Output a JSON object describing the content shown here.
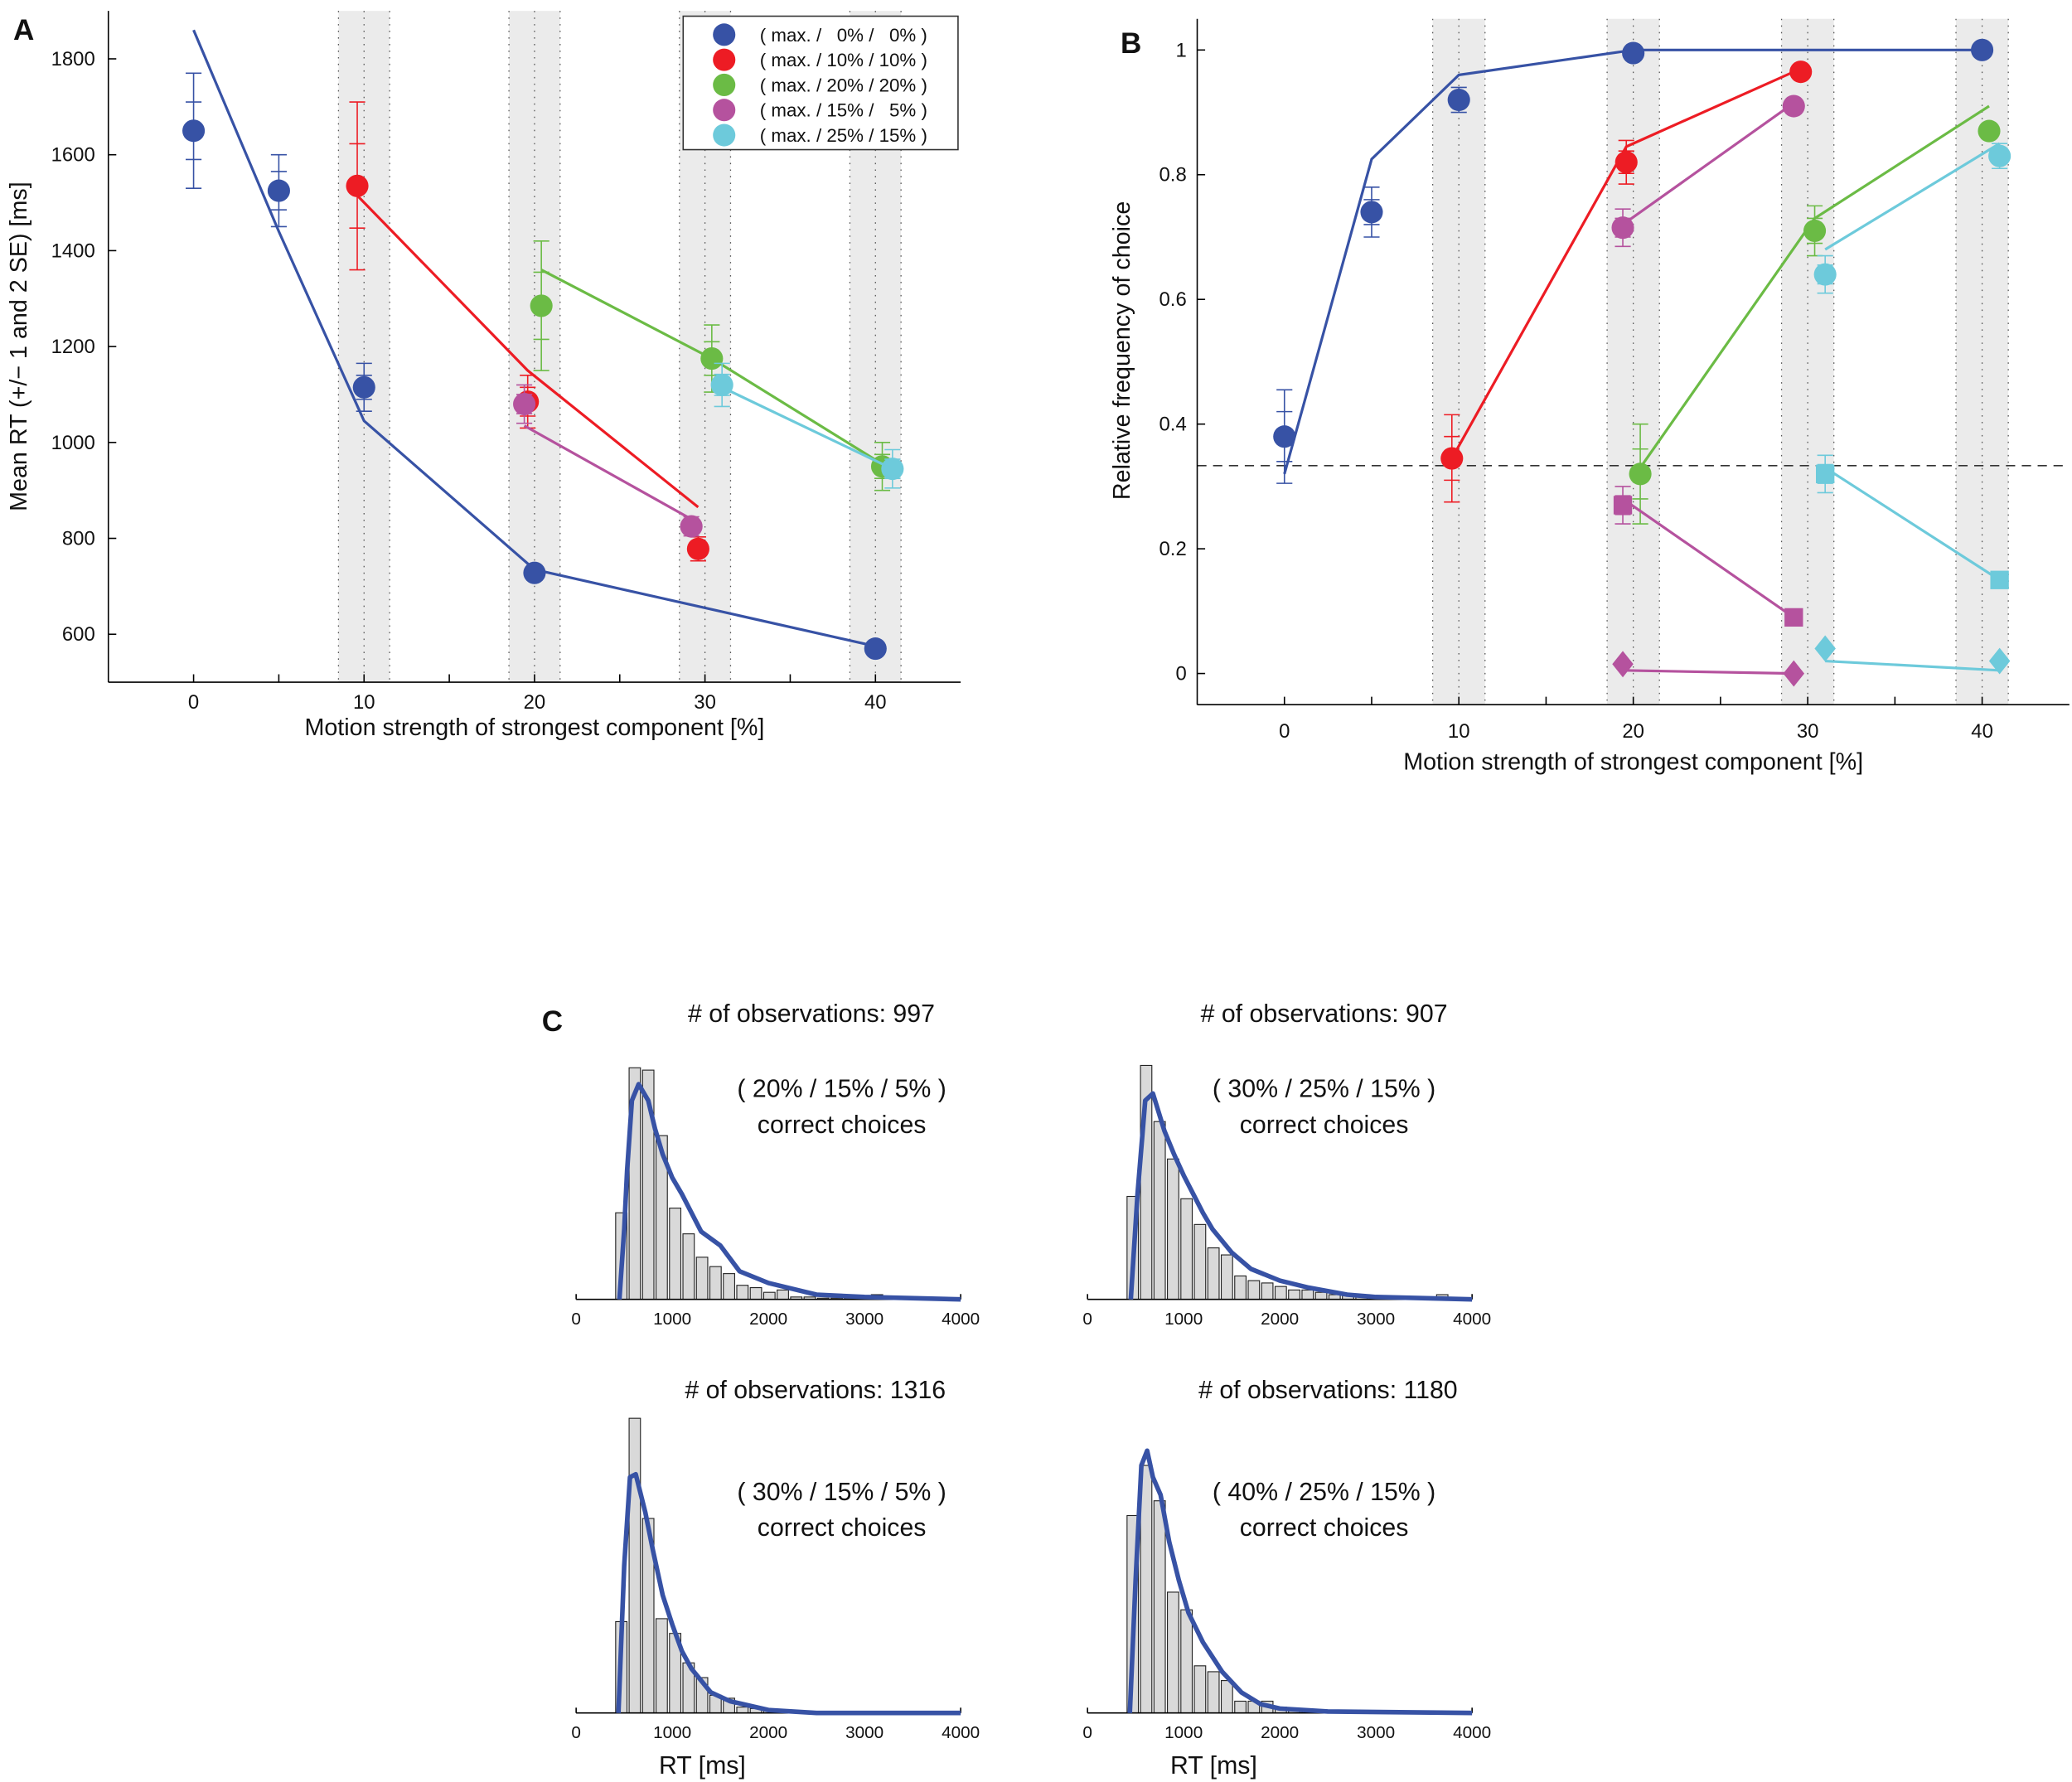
{
  "colors": {
    "blue": "#3752a5",
    "red": "#ed1c24",
    "green": "#6bbb45",
    "magenta": "#b5529e",
    "cyan": "#6dcadb",
    "band": "#ebebeb",
    "bar": "#d9d9d9"
  },
  "chart_data": [
    {
      "panel_label": "A",
      "type": "line+scatter with error bars",
      "xlabel": "Motion strength of strongest component [%]",
      "ylabel": "Mean RT (+/− 1 and 2 SE) [ms]",
      "xlim": [
        -5,
        45
      ],
      "ylim": [
        500,
        1900
      ],
      "xticks": [
        "0",
        "10",
        "20",
        "30",
        "40"
      ],
      "xtick_values": [
        0,
        10,
        20,
        30,
        40
      ],
      "xminor": [
        5,
        15,
        25,
        35
      ],
      "yticks": [
        "600",
        "800",
        "1000",
        "1200",
        "1400",
        "1600",
        "1800"
      ],
      "ytick_values": [
        600,
        800,
        1000,
        1200,
        1400,
        1600,
        1800
      ],
      "bands": [
        [
          8.5,
          11.5
        ],
        [
          18.5,
          21.5
        ],
        [
          28.5,
          31.5
        ],
        [
          38.5,
          41.5
        ]
      ],
      "legend": {
        "placement": "top-right",
        "entries": [
          {
            "label": "( max. /   0% /   0% )",
            "color": "blue"
          },
          {
            "label": "( max. / 10% / 10% )",
            "color": "red"
          },
          {
            "label": "( max. / 20% / 20% )",
            "color": "green"
          },
          {
            "label": "( max. / 15% /   5% )",
            "color": "magenta"
          },
          {
            "label": "( max. / 25% / 15% )",
            "color": "cyan"
          }
        ]
      },
      "series": [
        {
          "color": "blue",
          "marker": "circle",
          "x": [
            0,
            5,
            10,
            20,
            40
          ],
          "y": [
            1650,
            1525,
            1115,
            728,
            570
          ],
          "se": [
            [
              60,
              120
            ],
            [
              40,
              75
            ],
            [
              25,
              50
            ],
            [
              8,
              15
            ],
            [
              5,
              10
            ]
          ],
          "model_x": [
            0,
            5,
            10,
            20,
            40
          ],
          "model_y": [
            1860,
            1440,
            1045,
            735,
            575
          ]
        },
        {
          "color": "red",
          "marker": "circle",
          "x": [
            9.6,
            19.6,
            29.6
          ],
          "y": [
            1535,
            1085,
            778
          ],
          "se": [
            [
              88,
              175
            ],
            [
              30,
              55
            ],
            [
              12,
              25
            ]
          ],
          "model_x": [
            9.6,
            19.6,
            29.6
          ],
          "model_y": [
            1515,
            1150,
            865
          ]
        },
        {
          "color": "green",
          "marker": "circle",
          "x": [
            20.4,
            30.4,
            40.4
          ],
          "y": [
            1285,
            1175,
            950
          ],
          "se": [
            [
              70,
              135
            ],
            [
              35,
              70
            ],
            [
              25,
              50
            ]
          ],
          "model_x": [
            20.4,
            30.4,
            40.4
          ],
          "model_y": [
            1360,
            1175,
            955
          ]
        },
        {
          "color": "magenta",
          "marker": "circle",
          "x": [
            19.4,
            29.2
          ],
          "y": [
            1080,
            825
          ],
          "se": [
            [
              20,
              40
            ],
            [
              10,
              20
            ]
          ],
          "model_x": [
            19.4,
            29.2
          ],
          "model_y": [
            1035,
            840
          ]
        },
        {
          "color": "cyan",
          "marker": "circle",
          "x": [
            31,
            41
          ],
          "y": [
            1120,
            945
          ],
          "se": [
            [
              22,
              45
            ],
            [
              20,
              40
            ]
          ],
          "model_x": [
            31,
            41
          ],
          "model_y": [
            1115,
            945
          ]
        }
      ]
    },
    {
      "panel_label": "B",
      "type": "line+scatter with error bars",
      "xlabel": "Motion strength of strongest component [%]",
      "ylabel": "Relative frequency of choice",
      "xlim": [
        -5,
        45
      ],
      "ylim": [
        -0.05,
        1.05
      ],
      "xticks": [
        "0",
        "10",
        "20",
        "30",
        "40"
      ],
      "xtick_values": [
        0,
        10,
        20,
        30,
        40
      ],
      "xminor": [
        5,
        15,
        25,
        35
      ],
      "yticks": [
        "0",
        "0.2",
        "0.4",
        "0.6",
        "0.8",
        "1"
      ],
      "ytick_values": [
        0,
        0.2,
        0.4,
        0.6,
        0.8,
        1
      ],
      "bands": [
        [
          8.5,
          11.5
        ],
        [
          18.5,
          21.5
        ],
        [
          28.5,
          31.5
        ],
        [
          38.5,
          41.5
        ]
      ],
      "reference_line": {
        "y": 0.3333,
        "style": "dashed"
      },
      "series": [
        {
          "color": "blue",
          "marker": "circle",
          "x": [
            0,
            5,
            10,
            20,
            40
          ],
          "y": [
            0.38,
            0.74,
            0.92,
            0.995,
            1.0
          ],
          "se": [
            [
              0.04,
              0.075
            ],
            [
              0.02,
              0.04
            ],
            [
              0.01,
              0.02
            ],
            [
              0,
              0
            ],
            [
              0,
              0
            ]
          ],
          "model_x": [
            0,
            5,
            10,
            20,
            40
          ],
          "model_y": [
            0.32,
            0.825,
            0.96,
            1.0,
            1.0
          ]
        },
        {
          "color": "red",
          "marker": "circle",
          "x": [
            9.6,
            19.6,
            29.6
          ],
          "y": [
            0.345,
            0.82,
            0.965
          ],
          "se": [
            [
              0.035,
              0.07
            ],
            [
              0.018,
              0.035
            ],
            [
              0,
              0
            ]
          ],
          "model_x": [
            9.6,
            19.6,
            29.6
          ],
          "model_y": [
            0.345,
            0.845,
            0.97
          ]
        },
        {
          "color": "green",
          "marker": "circle",
          "x": [
            20.4,
            30.4,
            40.4
          ],
          "y": [
            0.32,
            0.71,
            0.87
          ],
          "se": [
            [
              0.04,
              0.08
            ],
            [
              0.02,
              0.04
            ],
            [
              0,
              0
            ]
          ],
          "model_x": [
            20.4,
            30.4,
            40.4
          ],
          "model_y": [
            0.33,
            0.73,
            0.91
          ]
        },
        {
          "color": "magenta",
          "marker": "circle",
          "x": [
            19.4,
            29.2
          ],
          "y": [
            0.715,
            0.91
          ],
          "se": [
            [
              0.015,
              0.03
            ],
            [
              0,
              0
            ]
          ],
          "model_x": [
            19.4,
            29.2
          ],
          "model_y": [
            0.72,
            0.915
          ]
        },
        {
          "color": "magenta",
          "marker": "square",
          "x": [
            19.4,
            29.2
          ],
          "y": [
            0.27,
            0.09
          ],
          "se": [
            [
              0.015,
              0.03
            ],
            [
              0.005,
              0.01
            ]
          ],
          "model_x": [
            19.4,
            29.2
          ],
          "model_y": [
            0.28,
            0.09
          ]
        },
        {
          "color": "magenta",
          "marker": "diamond",
          "x": [
            19.4,
            29.2
          ],
          "y": [
            0.015,
            0.0
          ],
          "se": [
            [
              0,
              0
            ],
            [
              0,
              0
            ]
          ],
          "model_x": [
            19.4,
            29.2
          ],
          "model_y": [
            0.005,
            0.0
          ]
        },
        {
          "color": "cyan",
          "marker": "circle",
          "x": [
            31,
            41
          ],
          "y": [
            0.64,
            0.83
          ],
          "se": [
            [
              0.015,
              0.03
            ],
            [
              0.01,
              0.02
            ]
          ],
          "model_x": [
            31,
            41
          ],
          "model_y": [
            0.68,
            0.85
          ]
        },
        {
          "color": "cyan",
          "marker": "square",
          "x": [
            31,
            41
          ],
          "y": [
            0.32,
            0.15
          ],
          "se": [
            [
              0.015,
              0.03
            ],
            [
              0.005,
              0.01
            ]
          ],
          "model_x": [
            31,
            41
          ],
          "model_y": [
            0.33,
            0.15
          ]
        },
        {
          "color": "cyan",
          "marker": "diamond",
          "x": [
            31,
            41
          ],
          "y": [
            0.04,
            0.02
          ],
          "se": [
            [
              0,
              0
            ],
            [
              0,
              0
            ]
          ],
          "model_x": [
            31,
            41
          ],
          "model_y": [
            0.02,
            0.005
          ]
        }
      ]
    },
    {
      "panel_label": "C",
      "type": "bar",
      "title": "# of observations: 997",
      "condition": "( 20% / 15% / 5% )",
      "subtitle": "correct choices",
      "xlim": [
        0,
        4000
      ],
      "xticks": [
        "0",
        "1000",
        "2000",
        "3000",
        "4000"
      ],
      "xtick_values": [
        0,
        1000,
        2000,
        3000,
        4000
      ],
      "xlabel": "",
      "bin_start": 400,
      "bin_width": 140,
      "values": [
        0.37,
        0.99,
        0.98,
        0.7,
        0.39,
        0.28,
        0.18,
        0.14,
        0.11,
        0.06,
        0.05,
        0.03,
        0.04,
        0.01,
        0.01,
        0.005,
        0.005,
        0.005,
        0.005,
        0.02,
        0.005
      ],
      "curve": [
        [
          450,
          0
        ],
        [
          500,
          0.3
        ],
        [
          530,
          0.55
        ],
        [
          580,
          0.85
        ],
        [
          650,
          0.92
        ],
        [
          750,
          0.85
        ],
        [
          820,
          0.73
        ],
        [
          900,
          0.62
        ],
        [
          1000,
          0.52
        ],
        [
          1100,
          0.45
        ],
        [
          1200,
          0.37
        ],
        [
          1300,
          0.29
        ],
        [
          1500,
          0.23
        ],
        [
          1700,
          0.12
        ],
        [
          2000,
          0.07
        ],
        [
          2200,
          0.05
        ],
        [
          2500,
          0.02
        ],
        [
          3000,
          0.01
        ],
        [
          4000,
          0
        ]
      ]
    },
    {
      "type": "bar",
      "title": "# of observations: 907",
      "condition": "( 30% / 25% / 15% )",
      "subtitle": "correct choices",
      "xlim": [
        0,
        4000
      ],
      "xticks": [
        "0",
        "1000",
        "2000",
        "3000",
        "4000"
      ],
      "xtick_values": [
        0,
        1000,
        2000,
        3000,
        4000
      ],
      "xlabel": "",
      "bin_start": 400,
      "bin_width": 140,
      "values": [
        0.44,
        1.0,
        0.76,
        0.6,
        0.43,
        0.32,
        0.22,
        0.19,
        0.1,
        0.08,
        0.07,
        0.055,
        0.04,
        0.04,
        0.03,
        0.02,
        0.015,
        0.01,
        0.005,
        0.005,
        0.005,
        0.005,
        0.005,
        0.02
      ],
      "curve": [
        [
          450,
          0
        ],
        [
          520,
          0.45
        ],
        [
          600,
          0.85
        ],
        [
          680,
          0.88
        ],
        [
          800,
          0.72
        ],
        [
          900,
          0.62
        ],
        [
          1000,
          0.53
        ],
        [
          1100,
          0.45
        ],
        [
          1200,
          0.37
        ],
        [
          1300,
          0.3
        ],
        [
          1500,
          0.2
        ],
        [
          1700,
          0.13
        ],
        [
          2000,
          0.08
        ],
        [
          2300,
          0.05
        ],
        [
          2700,
          0.02
        ],
        [
          3000,
          0.01
        ],
        [
          4000,
          0
        ]
      ]
    },
    {
      "type": "bar",
      "title": "# of observations: 1316",
      "condition": "( 30% / 15% / 5% )",
      "subtitle": "correct choices",
      "xlim": [
        0,
        4000
      ],
      "xticks": [
        "0",
        "1000",
        "2000",
        "3000",
        "4000"
      ],
      "xtick_values": [
        0,
        1000,
        2000,
        3000,
        4000
      ],
      "xlabel": "RT [ms]",
      "bin_start": 400,
      "bin_width": 140,
      "values": [
        0.31,
        1.0,
        0.66,
        0.32,
        0.27,
        0.17,
        0.12,
        0.06,
        0.05,
        0.02,
        0.015,
        0.01,
        0.01,
        0.005
      ],
      "curve": [
        [
          440,
          0
        ],
        [
          500,
          0.5
        ],
        [
          560,
          0.8
        ],
        [
          620,
          0.81
        ],
        [
          720,
          0.68
        ],
        [
          800,
          0.55
        ],
        [
          900,
          0.4
        ],
        [
          1000,
          0.3
        ],
        [
          1100,
          0.21
        ],
        [
          1200,
          0.15
        ],
        [
          1400,
          0.07
        ],
        [
          1600,
          0.04
        ],
        [
          2000,
          0.01
        ],
        [
          2500,
          0
        ],
        [
          4000,
          0
        ]
      ]
    },
    {
      "type": "bar",
      "title": "# of observations: 1180",
      "condition": "( 40% / 25% / 15% )",
      "subtitle": "correct choices",
      "xlim": [
        0,
        4000
      ],
      "xticks": [
        "0",
        "1000",
        "2000",
        "3000",
        "4000"
      ],
      "xtick_values": [
        0,
        1000,
        2000,
        3000,
        4000
      ],
      "xlabel": "RT [ms]",
      "bin_start": 400,
      "bin_width": 140,
      "values": [
        0.67,
        0.84,
        0.72,
        0.41,
        0.35,
        0.16,
        0.14,
        0.11,
        0.04,
        0.04,
        0.04,
        0.02,
        0.01,
        0.005,
        0.005,
        0.01
      ],
      "curve": [
        [
          440,
          0
        ],
        [
          500,
          0.45
        ],
        [
          560,
          0.84
        ],
        [
          620,
          0.89
        ],
        [
          680,
          0.8
        ],
        [
          760,
          0.74
        ],
        [
          850,
          0.58
        ],
        [
          950,
          0.45
        ],
        [
          1050,
          0.34
        ],
        [
          1200,
          0.24
        ],
        [
          1400,
          0.14
        ],
        [
          1600,
          0.07
        ],
        [
          1800,
          0.03
        ],
        [
          2000,
          0.015
        ],
        [
          2500,
          0.005
        ],
        [
          4000,
          0
        ]
      ]
    }
  ]
}
